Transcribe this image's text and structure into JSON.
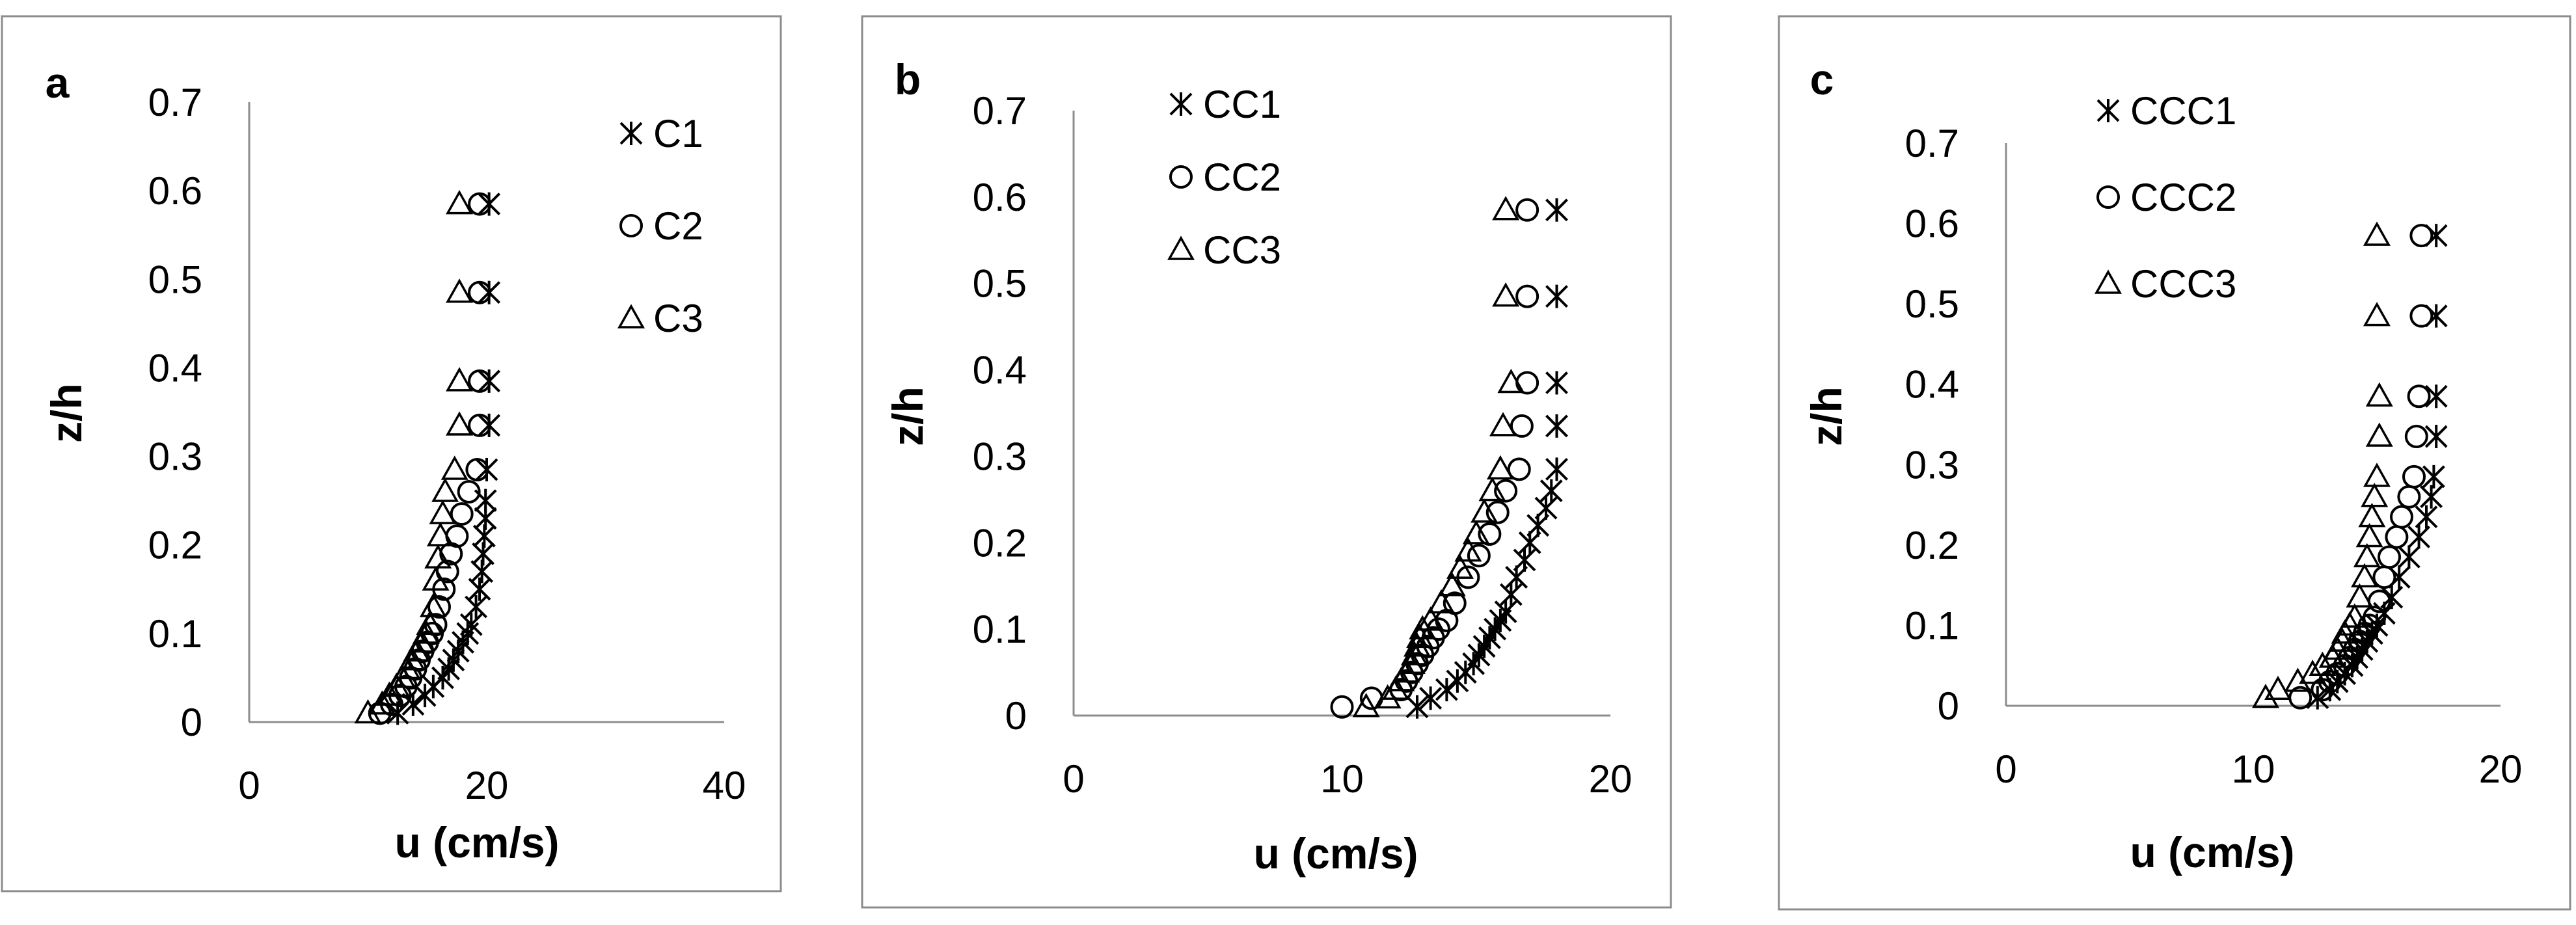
{
  "chart_data": [
    {
      "type": "scatter",
      "panel_label": "a",
      "xlabel": "u (cm/s)",
      "ylabel": "z/h",
      "xlim": [
        0,
        40
      ],
      "ylim": [
        0,
        0.7
      ],
      "x_ticks": [
        "0",
        "20",
        "40"
      ],
      "y_ticks": [
        "0",
        "0.1",
        "0.2",
        "0.3",
        "0.4",
        "0.5",
        "0.6",
        "0.7"
      ],
      "grid": false,
      "legend_position": "top-right",
      "series": [
        {
          "name": "C1",
          "marker": "asterisk",
          "points": [
            [
              12.5,
              0.01
            ],
            [
              13.8,
              0.02
            ],
            [
              14.8,
              0.03
            ],
            [
              15.5,
              0.04
            ],
            [
              16.3,
              0.05
            ],
            [
              16.8,
              0.06
            ],
            [
              17.2,
              0.07
            ],
            [
              17.6,
              0.08
            ],
            [
              18.0,
              0.09
            ],
            [
              18.4,
              0.1
            ],
            [
              18.7,
              0.11
            ],
            [
              19.1,
              0.13
            ],
            [
              19.4,
              0.15
            ],
            [
              19.6,
              0.17
            ],
            [
              19.7,
              0.19
            ],
            [
              19.8,
              0.21
            ],
            [
              19.9,
              0.23
            ],
            [
              19.9,
              0.25
            ],
            [
              20.0,
              0.285
            ],
            [
              20.2,
              0.335
            ],
            [
              20.2,
              0.385
            ],
            [
              20.2,
              0.485
            ],
            [
              20.2,
              0.585
            ]
          ]
        },
        {
          "name": "C2",
          "marker": "circle",
          "points": [
            [
              11.0,
              0.01
            ],
            [
              12.0,
              0.02
            ],
            [
              12.7,
              0.03
            ],
            [
              13.2,
              0.04
            ],
            [
              13.6,
              0.05
            ],
            [
              14.0,
              0.06
            ],
            [
              14.3,
              0.07
            ],
            [
              14.6,
              0.08
            ],
            [
              15.0,
              0.09
            ],
            [
              15.4,
              0.1
            ],
            [
              15.7,
              0.11
            ],
            [
              16.0,
              0.13
            ],
            [
              16.4,
              0.15
            ],
            [
              16.7,
              0.17
            ],
            [
              17.0,
              0.19
            ],
            [
              17.5,
              0.21
            ],
            [
              17.9,
              0.235
            ],
            [
              18.5,
              0.26
            ],
            [
              19.2,
              0.285
            ],
            [
              19.4,
              0.335
            ],
            [
              19.4,
              0.385
            ],
            [
              19.4,
              0.485
            ],
            [
              19.4,
              0.585
            ]
          ]
        },
        {
          "name": "C3",
          "marker": "triangle",
          "points": [
            [
              10.0,
              0.01
            ],
            [
              11.2,
              0.02
            ],
            [
              11.8,
              0.03
            ],
            [
              12.4,
              0.04
            ],
            [
              12.9,
              0.05
            ],
            [
              13.3,
              0.06
            ],
            [
              13.7,
              0.07
            ],
            [
              14.1,
              0.08
            ],
            [
              14.5,
              0.09
            ],
            [
              14.9,
              0.1
            ],
            [
              15.2,
              0.11
            ],
            [
              15.5,
              0.13
            ],
            [
              15.7,
              0.16
            ],
            [
              15.9,
              0.185
            ],
            [
              16.1,
              0.21
            ],
            [
              16.3,
              0.235
            ],
            [
              16.5,
              0.26
            ],
            [
              17.3,
              0.285
            ],
            [
              17.7,
              0.335
            ],
            [
              17.7,
              0.385
            ],
            [
              17.7,
              0.485
            ],
            [
              17.7,
              0.585
            ]
          ]
        }
      ]
    },
    {
      "type": "scatter",
      "panel_label": "b",
      "xlabel": "u (cm/s)",
      "ylabel": "z/h",
      "xlim": [
        0,
        20
      ],
      "ylim": [
        0,
        0.7
      ],
      "x_ticks": [
        "0",
        "10",
        "20"
      ],
      "y_ticks": [
        "0",
        "0.1",
        "0.2",
        "0.3",
        "0.4",
        "0.5",
        "0.6",
        "0.7"
      ],
      "grid": false,
      "legend_position": "top-left",
      "series": [
        {
          "name": "CC1",
          "marker": "asterisk",
          "points": [
            [
              12.8,
              0.01
            ],
            [
              13.3,
              0.02
            ],
            [
              13.9,
              0.03
            ],
            [
              14.3,
              0.04
            ],
            [
              14.6,
              0.05
            ],
            [
              14.9,
              0.06
            ],
            [
              15.1,
              0.07
            ],
            [
              15.3,
              0.08
            ],
            [
              15.5,
              0.09
            ],
            [
              15.7,
              0.1
            ],
            [
              15.9,
              0.11
            ],
            [
              16.1,
              0.12
            ],
            [
              16.3,
              0.14
            ],
            [
              16.5,
              0.16
            ],
            [
              16.8,
              0.18
            ],
            [
              17.0,
              0.2
            ],
            [
              17.3,
              0.22
            ],
            [
              17.6,
              0.24
            ],
            [
              17.8,
              0.26
            ],
            [
              18.0,
              0.285
            ],
            [
              18.0,
              0.335
            ],
            [
              18.0,
              0.385
            ],
            [
              18.0,
              0.485
            ],
            [
              18.0,
              0.585
            ]
          ]
        },
        {
          "name": "CC2",
          "marker": "circle",
          "points": [
            [
              10.0,
              0.01
            ],
            [
              11.1,
              0.02
            ],
            [
              12.2,
              0.03
            ],
            [
              12.4,
              0.04
            ],
            [
              12.6,
              0.05
            ],
            [
              12.8,
              0.06
            ],
            [
              13.0,
              0.07
            ],
            [
              13.2,
              0.08
            ],
            [
              13.4,
              0.09
            ],
            [
              13.6,
              0.1
            ],
            [
              13.9,
              0.11
            ],
            [
              14.2,
              0.13
            ],
            [
              14.7,
              0.16
            ],
            [
              15.1,
              0.185
            ],
            [
              15.5,
              0.21
            ],
            [
              15.8,
              0.235
            ],
            [
              16.1,
              0.26
            ],
            [
              16.6,
              0.285
            ],
            [
              16.7,
              0.335
            ],
            [
              16.9,
              0.385
            ],
            [
              16.9,
              0.485
            ],
            [
              16.9,
              0.585
            ]
          ]
        },
        {
          "name": "CC3",
          "marker": "triangle",
          "points": [
            [
              10.9,
              0.01
            ],
            [
              11.7,
              0.02
            ],
            [
              12.0,
              0.03
            ],
            [
              12.2,
              0.04
            ],
            [
              12.4,
              0.05
            ],
            [
              12.6,
              0.06
            ],
            [
              12.7,
              0.07
            ],
            [
              12.8,
              0.08
            ],
            [
              12.9,
              0.09
            ],
            [
              13.0,
              0.1
            ],
            [
              13.3,
              0.11
            ],
            [
              13.7,
              0.13
            ],
            [
              14.1,
              0.15
            ],
            [
              14.4,
              0.17
            ],
            [
              14.7,
              0.19
            ],
            [
              15.0,
              0.21
            ],
            [
              15.3,
              0.235
            ],
            [
              15.6,
              0.26
            ],
            [
              15.9,
              0.285
            ],
            [
              16.0,
              0.335
            ],
            [
              16.3,
              0.385
            ],
            [
              16.1,
              0.485
            ],
            [
              16.1,
              0.585
            ]
          ]
        }
      ]
    },
    {
      "type": "scatter",
      "panel_label": "c",
      "xlabel": "u (cm/s)",
      "ylabel": "z/h",
      "xlim": [
        0,
        20
      ],
      "ylim": [
        0,
        0.7
      ],
      "x_ticks": [
        "0",
        "10",
        "20"
      ],
      "y_ticks": [
        "0",
        "0.1",
        "0.2",
        "0.3",
        "0.4",
        "0.5",
        "0.6",
        "0.7"
      ],
      "grid": false,
      "legend_position": "top-left",
      "series": [
        {
          "name": "CCC1",
          "marker": "asterisk",
          "points": [
            [
              12.6,
              0.01
            ],
            [
              13.1,
              0.02
            ],
            [
              13.4,
              0.03
            ],
            [
              13.7,
              0.04
            ],
            [
              14.0,
              0.05
            ],
            [
              14.2,
              0.06
            ],
            [
              14.4,
              0.07
            ],
            [
              14.6,
              0.08
            ],
            [
              14.8,
              0.09
            ],
            [
              15.0,
              0.1
            ],
            [
              15.3,
              0.115
            ],
            [
              15.6,
              0.135
            ],
            [
              15.9,
              0.16
            ],
            [
              16.3,
              0.185
            ],
            [
              16.7,
              0.21
            ],
            [
              17.0,
              0.235
            ],
            [
              17.2,
              0.26
            ],
            [
              17.3,
              0.285
            ],
            [
              17.4,
              0.335
            ],
            [
              17.4,
              0.385
            ],
            [
              17.4,
              0.485
            ],
            [
              17.4,
              0.585
            ]
          ]
        },
        {
          "name": "CCC2",
          "marker": "circle",
          "points": [
            [
              11.9,
              0.01
            ],
            [
              12.8,
              0.02
            ],
            [
              13.1,
              0.03
            ],
            [
              13.4,
              0.04
            ],
            [
              13.7,
              0.05
            ],
            [
              13.9,
              0.06
            ],
            [
              14.1,
              0.07
            ],
            [
              14.3,
              0.08
            ],
            [
              14.5,
              0.09
            ],
            [
              14.7,
              0.1
            ],
            [
              14.9,
              0.11
            ],
            [
              15.1,
              0.13
            ],
            [
              15.3,
              0.16
            ],
            [
              15.5,
              0.185
            ],
            [
              15.8,
              0.21
            ],
            [
              16.0,
              0.235
            ],
            [
              16.3,
              0.26
            ],
            [
              16.5,
              0.285
            ],
            [
              16.6,
              0.335
            ],
            [
              16.7,
              0.385
            ],
            [
              16.8,
              0.485
            ],
            [
              16.8,
              0.585
            ]
          ]
        },
        {
          "name": "CCC3",
          "marker": "triangle",
          "points": [
            [
              10.5,
              0.01
            ],
            [
              11.0,
              0.02
            ],
            [
              11.8,
              0.03
            ],
            [
              12.4,
              0.04
            ],
            [
              12.8,
              0.05
            ],
            [
              13.2,
              0.06
            ],
            [
              13.4,
              0.07
            ],
            [
              13.6,
              0.08
            ],
            [
              13.7,
              0.09
            ],
            [
              13.9,
              0.1
            ],
            [
              14.1,
              0.11
            ],
            [
              14.3,
              0.135
            ],
            [
              14.5,
              0.16
            ],
            [
              14.6,
              0.185
            ],
            [
              14.7,
              0.21
            ],
            [
              14.8,
              0.235
            ],
            [
              14.9,
              0.26
            ],
            [
              15.0,
              0.285
            ],
            [
              15.1,
              0.335
            ],
            [
              15.1,
              0.385
            ],
            [
              15.0,
              0.485
            ],
            [
              15.0,
              0.585
            ]
          ]
        }
      ]
    }
  ]
}
